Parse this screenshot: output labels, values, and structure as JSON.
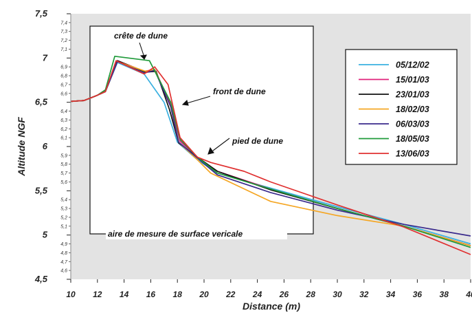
{
  "chart_data": {
    "type": "line",
    "xlabel": "Distance (m)",
    "ylabel": "Altitude NGF",
    "xlim": [
      10,
      40
    ],
    "ylim": [
      4.5,
      7.5
    ],
    "x_ticks": [
      "10",
      "12",
      "14",
      "16",
      "18",
      "20",
      "22",
      "24",
      "26",
      "28",
      "30",
      "32",
      "34",
      "36",
      "38",
      "40"
    ],
    "y_major_ticks": [
      "4,5",
      "5",
      "5,5",
      "6",
      "6,5",
      "7",
      "7,5"
    ],
    "y_minor_ticks": [
      "4,6",
      "4,7",
      "4,8",
      "4,9",
      "5,1",
      "5,2",
      "5,3",
      "5,4",
      "5,6",
      "5,7",
      "5,8",
      "5,9",
      "6,1",
      "6,2",
      "6,3",
      "6,4",
      "6,6",
      "6,7",
      "6,8",
      "6,9",
      "7,1",
      "7,2",
      "7,3",
      "7,4"
    ],
    "annotations": {
      "crest": "crête de dune",
      "front": "front de dune",
      "foot": "pied de dune",
      "area": "aire de mesure de surface vericale"
    },
    "legend_position": "right",
    "plot_background": "#e3e3e3",
    "series": [
      {
        "name": "05/12/02",
        "color": "#3ab0e0",
        "points": [
          [
            10,
            6.51
          ],
          [
            11,
            6.52
          ],
          [
            12,
            6.58
          ],
          [
            12.6,
            6.62
          ],
          [
            13.5,
            6.95
          ],
          [
            15.5,
            6.82
          ],
          [
            17,
            6.5
          ],
          [
            18,
            6.05
          ],
          [
            19.5,
            5.85
          ],
          [
            21,
            5.7
          ],
          [
            25,
            5.53
          ],
          [
            30,
            5.32
          ],
          [
            35,
            5.12
          ],
          [
            40,
            4.9
          ]
        ]
      },
      {
        "name": "15/01/03",
        "color": "#e0207a",
        "points": [
          [
            10,
            6.51
          ],
          [
            11,
            6.52
          ],
          [
            12,
            6.58
          ],
          [
            12.6,
            6.64
          ],
          [
            13.5,
            6.97
          ],
          [
            15.5,
            6.85
          ],
          [
            16.3,
            6.87
          ],
          [
            17.5,
            6.48
          ],
          [
            18.2,
            6.06
          ],
          [
            19.5,
            5.88
          ],
          [
            21,
            5.72
          ],
          [
            25,
            5.52
          ],
          [
            30,
            5.3
          ],
          [
            35,
            5.1
          ],
          [
            40,
            4.88
          ]
        ]
      },
      {
        "name": "23/01/03",
        "color": "#111111",
        "points": [
          [
            10,
            6.51
          ],
          [
            11,
            6.52
          ],
          [
            12,
            6.58
          ],
          [
            12.6,
            6.62
          ],
          [
            13.5,
            6.97
          ],
          [
            15.6,
            6.84
          ],
          [
            16.4,
            6.85
          ],
          [
            17.4,
            6.42
          ],
          [
            18.1,
            6.04
          ],
          [
            19.5,
            5.88
          ],
          [
            21,
            5.72
          ],
          [
            25,
            5.51
          ],
          [
            30,
            5.3
          ],
          [
            35,
            5.1
          ],
          [
            40,
            4.88
          ]
        ]
      },
      {
        "name": "18/02/03",
        "color": "#f5a623",
        "points": [
          [
            10,
            6.51
          ],
          [
            11,
            6.52
          ],
          [
            12,
            6.58
          ],
          [
            12.6,
            6.62
          ],
          [
            13.5,
            6.96
          ],
          [
            15.6,
            6.85
          ],
          [
            16.3,
            6.87
          ],
          [
            17.5,
            6.45
          ],
          [
            18.1,
            6.05
          ],
          [
            19.5,
            5.85
          ],
          [
            20.5,
            5.7
          ],
          [
            25,
            5.38
          ],
          [
            30,
            5.22
          ],
          [
            35,
            5.1
          ],
          [
            40,
            4.88
          ]
        ]
      },
      {
        "name": "06/03/03",
        "color": "#3a2a8c",
        "points": [
          [
            10,
            6.51
          ],
          [
            11,
            6.52
          ],
          [
            12,
            6.58
          ],
          [
            12.6,
            6.62
          ],
          [
            13.5,
            6.96
          ],
          [
            15.5,
            6.83
          ],
          [
            16.3,
            6.86
          ],
          [
            17.5,
            6.45
          ],
          [
            18.1,
            6.05
          ],
          [
            19.5,
            5.87
          ],
          [
            21,
            5.68
          ],
          [
            25,
            5.48
          ],
          [
            30,
            5.28
          ],
          [
            35,
            5.12
          ],
          [
            40,
            4.99
          ]
        ]
      },
      {
        "name": "18/05/03",
        "color": "#1f9a3a",
        "points": [
          [
            10,
            6.51
          ],
          [
            11,
            6.52
          ],
          [
            12,
            6.58
          ],
          [
            12.6,
            6.64
          ],
          [
            13.3,
            7.02
          ],
          [
            15.9,
            6.97
          ],
          [
            17.5,
            6.5
          ],
          [
            18.2,
            6.08
          ],
          [
            19.5,
            5.88
          ],
          [
            21,
            5.7
          ],
          [
            25,
            5.52
          ],
          [
            30,
            5.3
          ],
          [
            35,
            5.1
          ],
          [
            40,
            4.86
          ]
        ]
      },
      {
        "name": "13/06/03",
        "color": "#e03030",
        "points": [
          [
            10,
            6.51
          ],
          [
            11,
            6.52
          ],
          [
            12,
            6.58
          ],
          [
            12.6,
            6.62
          ],
          [
            13.4,
            6.97
          ],
          [
            15.5,
            6.82
          ],
          [
            16.3,
            6.9
          ],
          [
            17.3,
            6.7
          ],
          [
            18.2,
            6.1
          ],
          [
            19.5,
            5.88
          ],
          [
            20.5,
            5.82
          ],
          [
            23,
            5.72
          ],
          [
            25,
            5.6
          ],
          [
            30,
            5.34
          ],
          [
            35,
            5.09
          ],
          [
            40,
            4.78
          ]
        ]
      }
    ]
  }
}
